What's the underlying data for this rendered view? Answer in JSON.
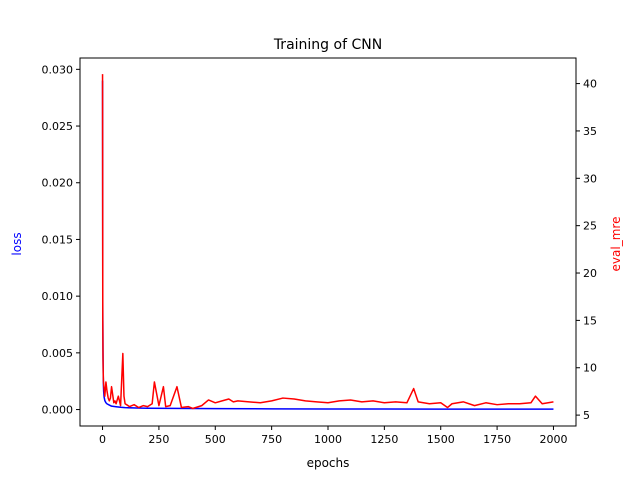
{
  "chart_data": {
    "type": "line",
    "title": "Training of CNN",
    "xlabel": "epochs",
    "ylabel_left": "loss",
    "ylabel_right": "eval_mre",
    "xlim": [
      -100,
      2100
    ],
    "ylim_left": [
      -0.00145,
      0.031
    ],
    "ylim_right": [
      3.85,
      42.7
    ],
    "x_ticks": [
      0,
      250,
      500,
      750,
      1000,
      1250,
      1500,
      1750,
      2000
    ],
    "x_tick_labels": [
      "0",
      "250",
      "500",
      "750",
      "1000",
      "1250",
      "1500",
      "1750",
      "2000"
    ],
    "y_left_ticks": [
      0.0,
      0.005,
      0.01,
      0.015,
      0.02,
      0.025,
      0.03
    ],
    "y_left_tick_labels": [
      "0.000",
      "0.005",
      "0.010",
      "0.015",
      "0.020",
      "0.025",
      "0.030"
    ],
    "y_right_ticks": [
      5,
      10,
      15,
      20,
      25,
      30,
      35,
      40
    ],
    "y_right_tick_labels": [
      "5",
      "10",
      "15",
      "20",
      "25",
      "30",
      "35",
      "40"
    ],
    "grid": false,
    "colors": {
      "loss": "#0000ff",
      "eval_mre": "#ff0000",
      "axes": "#000000"
    },
    "series": [
      {
        "name": "loss",
        "axis": "left",
        "color": "#0000ff",
        "x": [
          0,
          1,
          2,
          3,
          4,
          5,
          7,
          10,
          15,
          20,
          30,
          40,
          60,
          80,
          100,
          150,
          200,
          300,
          400,
          500,
          750,
          1000,
          1250,
          1500,
          1750,
          2000
        ],
        "y": [
          0.029,
          0.0095,
          0.0052,
          0.0031,
          0.0021,
          0.0016,
          0.0011,
          0.0008,
          0.0006,
          0.0005,
          0.0004,
          0.0003,
          0.00025,
          0.0002,
          0.00017,
          0.00014,
          0.00012,
          0.0001,
          9e-05,
          8e-05,
          6e-05,
          5e-05,
          5e-05,
          4e-05,
          4e-05,
          4e-05
        ]
      },
      {
        "name": "eval_mre",
        "axis": "right",
        "color": "#ff0000",
        "x": [
          0,
          1,
          2,
          3,
          4,
          6,
          8,
          10,
          15,
          20,
          25,
          30,
          35,
          40,
          50,
          55,
          60,
          70,
          80,
          90,
          95,
          100,
          120,
          140,
          160,
          180,
          200,
          220,
          230,
          250,
          270,
          280,
          300,
          330,
          350,
          380,
          400,
          440,
          470,
          500,
          530,
          560,
          580,
          600,
          650,
          700,
          750,
          800,
          850,
          900,
          950,
          1000,
          1050,
          1100,
          1150,
          1200,
          1250,
          1300,
          1350,
          1380,
          1400,
          1450,
          1500,
          1530,
          1550,
          1600,
          1650,
          1700,
          1750,
          1800,
          1850,
          1900,
          1920,
          1950,
          2000
        ],
        "y": [
          41.0,
          15.0,
          11.0,
          9.5,
          8.5,
          8.0,
          7.5,
          7.0,
          8.5,
          7.5,
          6.8,
          6.5,
          6.8,
          8.0,
          6.3,
          6.5,
          6.2,
          7.0,
          6.0,
          11.5,
          7.0,
          6.2,
          5.9,
          6.1,
          5.8,
          6.0,
          5.9,
          6.2,
          8.5,
          6.0,
          8.0,
          5.9,
          6.0,
          8.0,
          5.8,
          5.9,
          5.7,
          6.0,
          6.6,
          6.3,
          6.5,
          6.7,
          6.4,
          6.5,
          6.4,
          6.3,
          6.5,
          6.8,
          6.7,
          6.5,
          6.4,
          6.3,
          6.5,
          6.6,
          6.4,
          6.5,
          6.3,
          6.4,
          6.3,
          7.8,
          6.4,
          6.2,
          6.3,
          5.8,
          6.2,
          6.4,
          6.0,
          6.3,
          6.1,
          6.2,
          6.2,
          6.3,
          7.0,
          6.2,
          6.4
        ]
      }
    ]
  }
}
